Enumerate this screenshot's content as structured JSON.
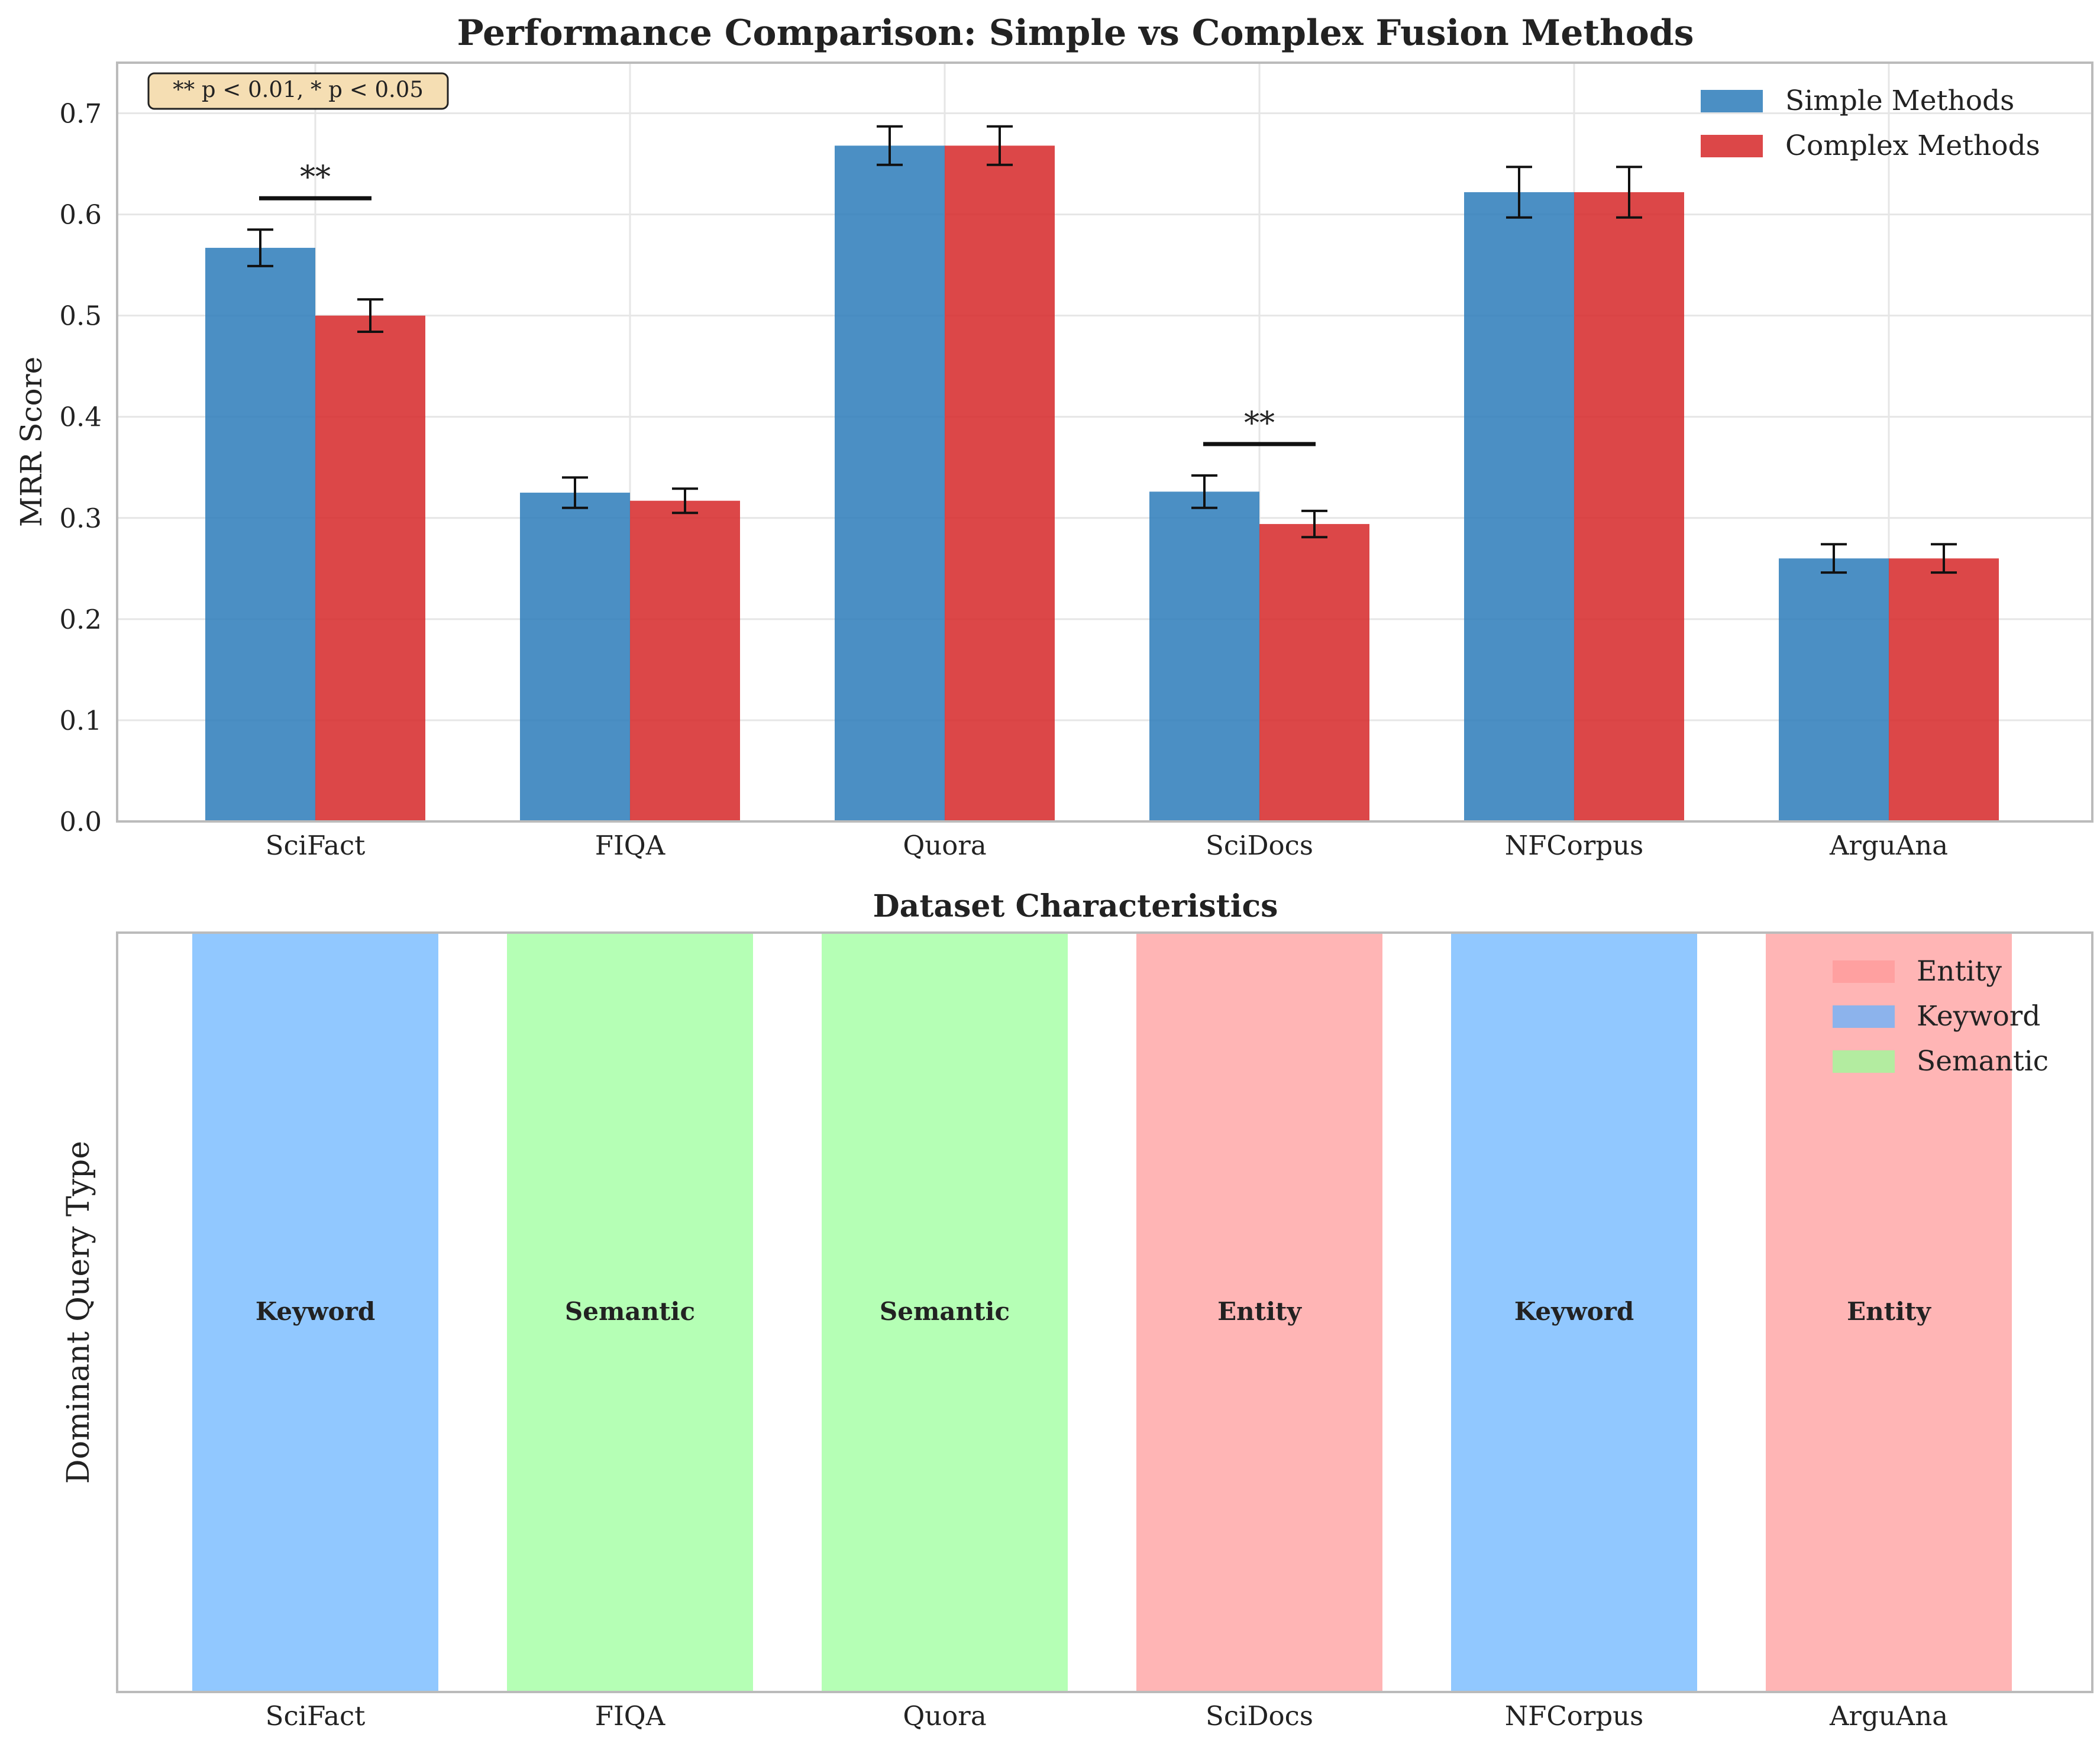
{
  "chart_data": [
    {
      "type": "bar",
      "title": "Performance Comparison: Simple vs Complex Fusion Methods",
      "xlabel": "",
      "ylabel": "MRR Score",
      "ylim": [
        0,
        0.75
      ],
      "yticks": [
        "0.0",
        "0.1",
        "0.2",
        "0.3",
        "0.4",
        "0.5",
        "0.6",
        "0.7"
      ],
      "grid": true,
      "legend_position": "top-right",
      "categories": [
        "SciFact",
        "FIQA",
        "Quora",
        "SciDocs",
        "NFCorpus",
        "ArguAna"
      ],
      "series": [
        {
          "name": "Simple Methods",
          "color": "#2b7bba",
          "values": [
            0.567,
            0.325,
            0.668,
            0.326,
            0.622,
            0.26
          ],
          "errors": [
            0.018,
            0.015,
            0.019,
            0.016,
            0.025,
            0.014
          ]
        },
        {
          "name": "Complex Methods",
          "color": "#d62728",
          "values": [
            0.5,
            0.317,
            0.668,
            0.294,
            0.622,
            0.26
          ],
          "errors": [
            0.016,
            0.012,
            0.019,
            0.013,
            0.025,
            0.014
          ]
        }
      ],
      "significance": [
        {
          "category": "SciFact",
          "label": "**",
          "y": 0.616
        },
        {
          "category": "SciDocs",
          "label": "**",
          "y": 0.373
        }
      ],
      "note": "** p < 0.01, * p < 0.05"
    },
    {
      "type": "bar",
      "title": "Dataset Characteristics",
      "xlabel": "",
      "ylabel": "Dominant Query Type",
      "ylim": [
        0,
        1
      ],
      "grid": false,
      "legend_position": "top-right",
      "categories": [
        "SciFact",
        "FIQA",
        "Quora",
        "SciDocs",
        "NFCorpus",
        "ArguAna"
      ],
      "values": [
        1,
        1,
        1,
        1,
        1,
        1
      ],
      "query_types": [
        "Keyword",
        "Semantic",
        "Semantic",
        "Entity",
        "Keyword",
        "Entity"
      ],
      "legend": [
        {
          "name": "Entity",
          "color": "#ff9999"
        },
        {
          "name": "Keyword",
          "color": "#66b3ff"
        },
        {
          "name": "Semantic",
          "color": "#99ff99"
        }
      ]
    }
  ]
}
